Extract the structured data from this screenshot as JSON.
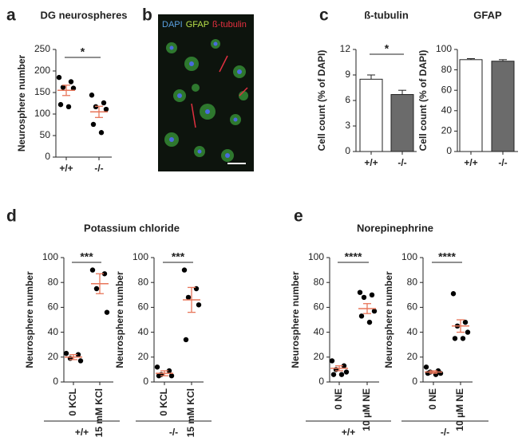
{
  "panels": [
    "a",
    "b",
    "c",
    "d",
    "e"
  ],
  "image": {
    "labels": [
      "DAPI",
      "GFAP",
      "ß-tubulin"
    ],
    "colors": [
      "#5aa0e0",
      "#b8e04a",
      "#e83040"
    ]
  },
  "groups": [
    {
      "title": "Potassium chloride",
      "labels": [
        "+/+",
        "-/-"
      ]
    },
    {
      "title": "Norepinephrine",
      "labels": [
        "+/+",
        "-/-"
      ]
    }
  ],
  "chart_data": [
    {
      "type": "dot",
      "title": "DG neurospheres",
      "ylabel": "Neurosphere number",
      "categories": [
        "+/+",
        "-/-"
      ],
      "points": [
        [
          185,
          175,
          162,
          160,
          122,
          117
        ],
        [
          144,
          126,
          117,
          111,
          76,
          57
        ]
      ],
      "means": [
        155,
        105
      ],
      "errors": [
        12,
        13
      ],
      "significance": "*",
      "ylim": [
        0,
        250
      ],
      "yticks": [
        0,
        50,
        100,
        150,
        200,
        250
      ],
      "color": "#000000",
      "mean_color": "#e8765a"
    },
    {
      "type": "bar",
      "title": "ß-tubulin",
      "ylabel": "Cell count (% of DAPI)",
      "categories": [
        "+/+",
        "-/-"
      ],
      "values": [
        8.5,
        6.7
      ],
      "errors": [
        0.5,
        0.5
      ],
      "colors": [
        "#ffffff",
        "#6b6b6b"
      ],
      "significance": "*",
      "ylim": [
        0,
        12
      ],
      "yticks": [
        0,
        3,
        6,
        9,
        12
      ]
    },
    {
      "type": "bar",
      "title": "GFAP",
      "ylabel": "Cell count (% of DAPI)",
      "categories": [
        "+/+",
        "-/-"
      ],
      "values": [
        90,
        88.5
      ],
      "errors": [
        1,
        1.5
      ],
      "colors": [
        "#ffffff",
        "#6b6b6b"
      ],
      "ylim": [
        0,
        100
      ],
      "yticks": [
        0,
        20,
        40,
        60,
        80,
        100
      ]
    },
    {
      "type": "dot",
      "ylabel": "Neurosphere number",
      "categories": [
        "0 KCL",
        "15 mM KCl"
      ],
      "points": [
        [
          23,
          22,
          19,
          17
        ],
        [
          90,
          87,
          75,
          56
        ]
      ],
      "means": [
        20,
        79
      ],
      "errors": [
        2,
        8
      ],
      "significance": "***",
      "ylim": [
        0,
        100
      ],
      "yticks": [
        0,
        20,
        40,
        60,
        80,
        100
      ],
      "color": "#000000",
      "mean_color": "#e8765a"
    },
    {
      "type": "dot",
      "ylabel": "Neurosphere number",
      "categories": [
        "0 KCL",
        "15 mM KCl"
      ],
      "points": [
        [
          12,
          9,
          6,
          5,
          5
        ],
        [
          90,
          75,
          68,
          62,
          34
        ]
      ],
      "means": [
        7,
        66
      ],
      "errors": [
        2,
        10
      ],
      "significance": "***",
      "ylim": [
        0,
        100
      ],
      "yticks": [
        0,
        20,
        40,
        60,
        80,
        100
      ],
      "color": "#000000",
      "mean_color": "#e8765a"
    },
    {
      "type": "dot",
      "ylabel": "Neurosphere number",
      "categories": [
        "0 NE",
        "10 µM NE"
      ],
      "points": [
        [
          17,
          13,
          10,
          8,
          6,
          6
        ],
        [
          72,
          70,
          68,
          57,
          53,
          48
        ]
      ],
      "means": [
        11,
        59
      ],
      "errors": [
        2,
        4
      ],
      "significance": "****",
      "ylim": [
        0,
        100
      ],
      "yticks": [
        0,
        20,
        40,
        60,
        80,
        100
      ],
      "color": "#000000",
      "mean_color": "#e8765a"
    },
    {
      "type": "dot",
      "ylabel": "Neurosphere number",
      "categories": [
        "0 NE",
        "10 µM NE"
      ],
      "points": [
        [
          12,
          9,
          8,
          7,
          7,
          6
        ],
        [
          71,
          48,
          45,
          40,
          35,
          35
        ]
      ],
      "means": [
        8,
        45
      ],
      "errors": [
        1,
        5
      ],
      "significance": "****",
      "ylim": [
        0,
        100
      ],
      "yticks": [
        0,
        20,
        40,
        60,
        80,
        100
      ],
      "color": "#000000",
      "mean_color": "#e8765a"
    }
  ]
}
